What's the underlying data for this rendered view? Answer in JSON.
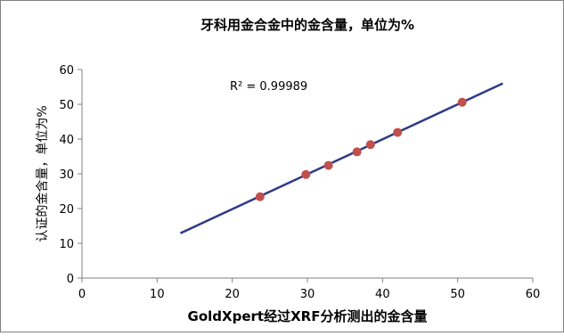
{
  "chart_data": {
    "type": "scatter",
    "title": "牙科用金合金中的金含量，单位为%",
    "xlabel": "GoldXpert经过XRF分析测出的金含量",
    "ylabel": "认证的金含量，单位为%",
    "xlim": [
      0,
      60
    ],
    "ylim": [
      0,
      60
    ],
    "x_ticks": [
      "0",
      "10",
      "20",
      "30",
      "40",
      "50",
      "60"
    ],
    "y_ticks": [
      "0",
      "10",
      "20",
      "30",
      "40",
      "50",
      "60"
    ],
    "points": [
      {
        "x": 23.7,
        "y": 23.4
      },
      {
        "x": 29.8,
        "y": 29.8
      },
      {
        "x": 32.8,
        "y": 32.4
      },
      {
        "x": 36.6,
        "y": 36.3
      },
      {
        "x": 38.4,
        "y": 38.4
      },
      {
        "x": 42.0,
        "y": 41.9
      },
      {
        "x": 50.6,
        "y": 50.6
      }
    ],
    "trendline": {
      "x": [
        13.1,
        56.0
      ],
      "y": [
        12.9,
        56.0
      ]
    },
    "annotation": "R² = 0.99989",
    "grid": false,
    "legend": "none",
    "colors": {
      "marker": "#c0504d",
      "line": "#2e3a87",
      "axis": "#808080"
    }
  }
}
